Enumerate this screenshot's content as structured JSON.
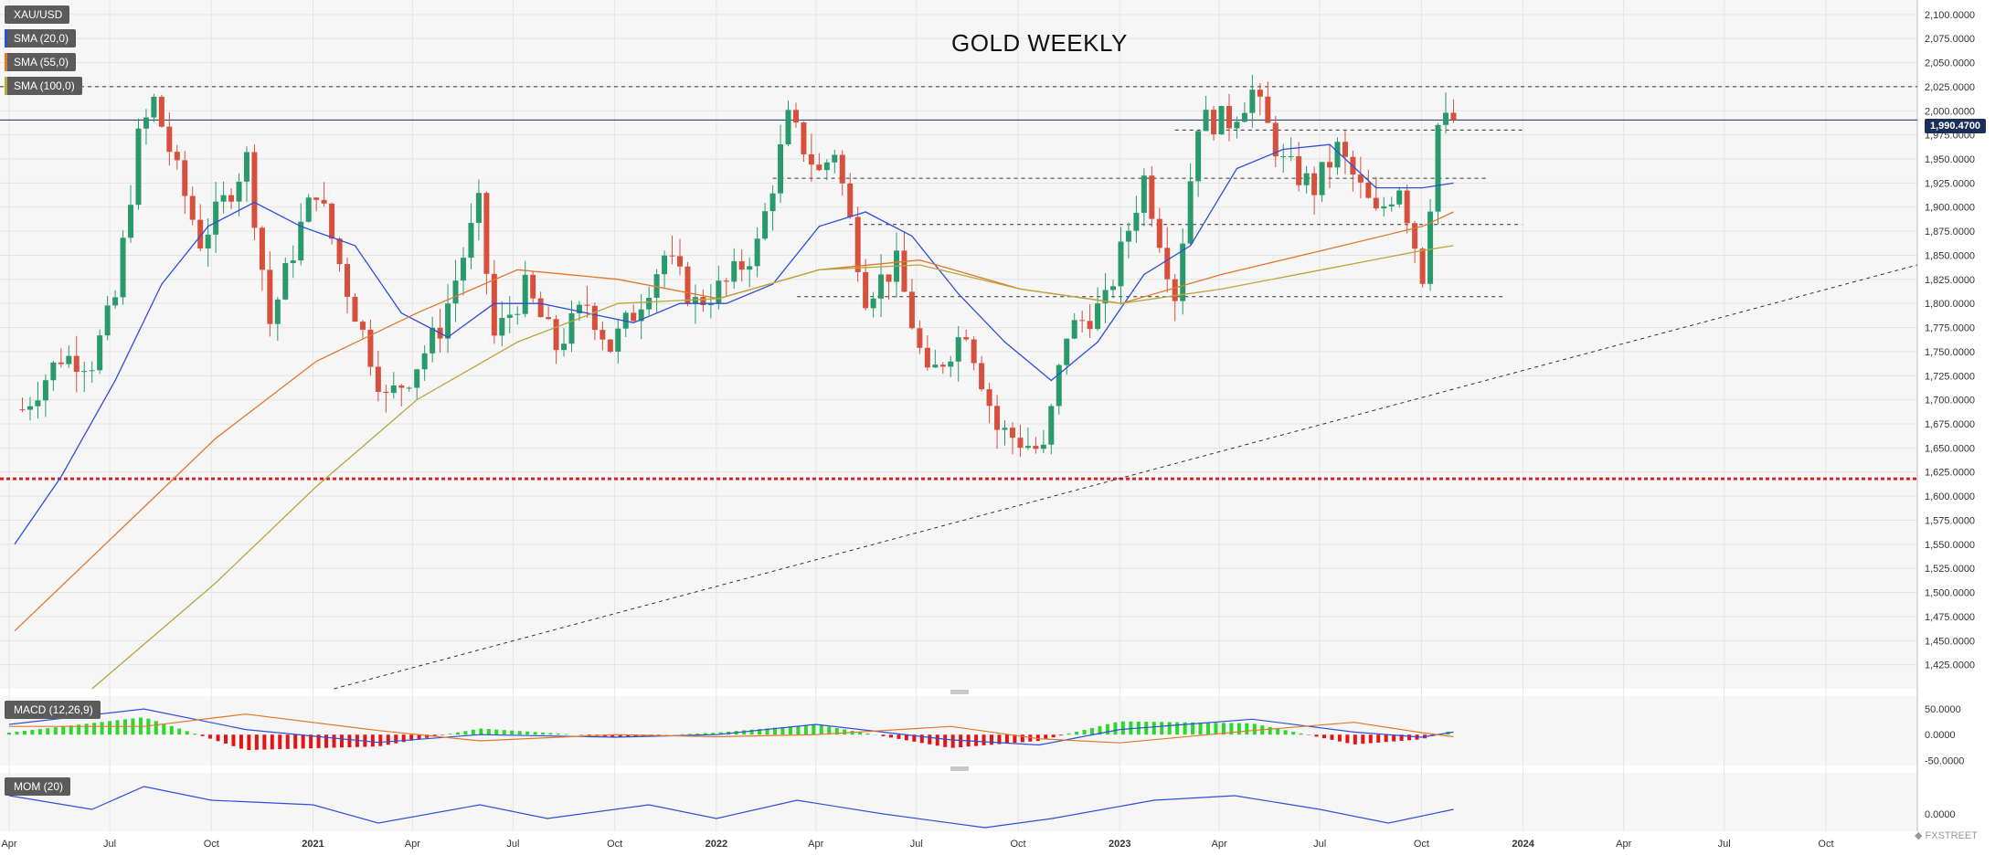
{
  "chart_data": [
    {
      "type": "line",
      "title": "GOLD WEEKLY",
      "symbol": "XAU/USD",
      "last_price": "1,990.4700",
      "indicators": [
        {
          "label": "SMA (20,0)",
          "color": "#2f4ed8"
        },
        {
          "label": "SMA (55,0)",
          "color": "#e0782c"
        },
        {
          "label": "SMA (100,0)",
          "color": "#b9a73a"
        }
      ],
      "x_ticks": [
        "Apr",
        "Jul",
        "Oct",
        "2021",
        "Apr",
        "Jul",
        "Oct",
        "2022",
        "Apr",
        "Jul",
        "Oct",
        "2023",
        "Apr",
        "Jul",
        "Oct",
        "2024",
        "Apr",
        "Jul",
        "Oct"
      ],
      "x_range": [
        "2020-04-01",
        "2024-12-31"
      ],
      "y_ticks": [
        "2,100.0000",
        "2,075.0000",
        "2,050.0000",
        "2,025.0000",
        "2,000.0000",
        "1,975.0000",
        "1,950.0000",
        "1,925.0000",
        "1,900.0000",
        "1,875.0000",
        "1,850.0000",
        "1,825.0000",
        "1,800.0000",
        "1,775.0000",
        "1,750.0000",
        "1,725.0000",
        "1,700.0000",
        "1,675.0000",
        "1,650.0000",
        "1,625.0000",
        "1,600.0000",
        "1,575.0000",
        "1,550.0000",
        "1,525.0000",
        "1,500.0000",
        "1,475.0000",
        "1,450.0000",
        "1,425.0000"
      ],
      "ylim": [
        1400,
        2115
      ],
      "price_path": [
        [
          "2020-04-13",
          1690
        ],
        [
          "2020-05-18",
          1745
        ],
        [
          "2020-06-15",
          1740
        ],
        [
          "2020-07-06",
          1805
        ],
        [
          "2020-07-27",
          1970
        ],
        [
          "2020-08-10",
          2010
        ],
        [
          "2020-08-31",
          1935
        ],
        [
          "2020-09-21",
          1865
        ],
        [
          "2020-10-12",
          1905
        ],
        [
          "2020-11-02",
          1950
        ],
        [
          "2020-11-23",
          1780
        ],
        [
          "2020-12-21",
          1880
        ],
        [
          "2021-01-04",
          1920
        ],
        [
          "2021-02-01",
          1815
        ],
        [
          "2021-03-08",
          1700
        ],
        [
          "2021-03-29",
          1725
        ],
        [
          "2021-04-26",
          1775
        ],
        [
          "2021-05-31",
          1900
        ],
        [
          "2021-06-14",
          1765
        ],
        [
          "2021-07-12",
          1815
        ],
        [
          "2021-08-09",
          1755
        ],
        [
          "2021-09-06",
          1800
        ],
        [
          "2021-09-27",
          1755
        ],
        [
          "2021-10-18",
          1790
        ],
        [
          "2021-11-15",
          1850
        ],
        [
          "2021-12-13",
          1800
        ],
        [
          "2022-01-10",
          1820
        ],
        [
          "2022-02-07",
          1860
        ],
        [
          "2022-03-07",
          1990
        ],
        [
          "2022-04-04",
          1935
        ],
        [
          "2022-04-18",
          1960
        ],
        [
          "2022-05-16",
          1810
        ],
        [
          "2022-06-13",
          1840
        ],
        [
          "2022-07-11",
          1720
        ],
        [
          "2022-08-15",
          1775
        ],
        [
          "2022-09-12",
          1670
        ],
        [
          "2022-10-24",
          1645
        ],
        [
          "2022-11-14",
          1770
        ],
        [
          "2022-12-19",
          1800
        ],
        [
          "2023-01-23",
          1930
        ],
        [
          "2023-02-20",
          1810
        ],
        [
          "2023-03-13",
          1990
        ],
        [
          "2023-04-10",
          1990
        ],
        [
          "2023-05-01",
          2020
        ],
        [
          "2023-05-29",
          1945
        ],
        [
          "2023-06-26",
          1920
        ],
        [
          "2023-07-17",
          1960
        ],
        [
          "2023-08-21",
          1890
        ],
        [
          "2023-09-11",
          1925
        ],
        [
          "2023-10-02",
          1830
        ],
        [
          "2023-10-16",
          1985
        ],
        [
          "2023-10-30",
          1990.47
        ]
      ],
      "series": [
        {
          "name": "SMA (20,0)",
          "color": "#2f4ed8",
          "points": [
            [
              "2020-04-06",
              1550
            ],
            [
              "2020-05-18",
              1620
            ],
            [
              "2020-07-06",
              1720
            ],
            [
              "2020-08-17",
              1820
            ],
            [
              "2020-09-28",
              1880
            ],
            [
              "2020-11-09",
              1905
            ],
            [
              "2020-12-21",
              1880
            ],
            [
              "2021-02-08",
              1860
            ],
            [
              "2021-03-22",
              1790
            ],
            [
              "2021-05-03",
              1765
            ],
            [
              "2021-06-14",
              1800
            ],
            [
              "2021-07-26",
              1800
            ],
            [
              "2021-09-06",
              1790
            ],
            [
              "2021-10-18",
              1780
            ],
            [
              "2021-11-29",
              1800
            ],
            [
              "2022-01-10",
              1800
            ],
            [
              "2022-02-21",
              1820
            ],
            [
              "2022-04-04",
              1880
            ],
            [
              "2022-05-16",
              1895
            ],
            [
              "2022-06-27",
              1870
            ],
            [
              "2022-08-08",
              1810
            ],
            [
              "2022-09-19",
              1760
            ],
            [
              "2022-10-31",
              1720
            ],
            [
              "2022-12-12",
              1760
            ],
            [
              "2023-01-23",
              1830
            ],
            [
              "2023-03-06",
              1860
            ],
            [
              "2023-04-17",
              1940
            ],
            [
              "2023-05-29",
              1960
            ],
            [
              "2023-07-10",
              1965
            ],
            [
              "2023-08-21",
              1920
            ],
            [
              "2023-10-02",
              1920
            ],
            [
              "2023-10-30",
              1925
            ]
          ]
        },
        {
          "name": "SMA (55,0)",
          "color": "#e0782c",
          "points": [
            [
              "2020-04-06",
              1460
            ],
            [
              "2020-07-06",
              1560
            ],
            [
              "2020-10-05",
              1660
            ],
            [
              "2021-01-04",
              1740
            ],
            [
              "2021-04-05",
              1790
            ],
            [
              "2021-07-05",
              1835
            ],
            [
              "2021-10-04",
              1825
            ],
            [
              "2022-01-03",
              1805
            ],
            [
              "2022-04-04",
              1835
            ],
            [
              "2022-07-04",
              1845
            ],
            [
              "2022-10-03",
              1815
            ],
            [
              "2023-01-02",
              1800
            ],
            [
              "2023-04-03",
              1830
            ],
            [
              "2023-07-03",
              1855
            ],
            [
              "2023-10-02",
              1880
            ],
            [
              "2023-10-30",
              1895
            ]
          ]
        },
        {
          "name": "SMA (100,0)",
          "color": "#b9a73a",
          "points": [
            [
              "2020-06-15",
              1400
            ],
            [
              "2020-10-05",
              1510
            ],
            [
              "2021-01-04",
              1610
            ],
            [
              "2021-04-05",
              1700
            ],
            [
              "2021-07-05",
              1760
            ],
            [
              "2021-10-04",
              1800
            ],
            [
              "2022-01-03",
              1805
            ],
            [
              "2022-04-04",
              1835
            ],
            [
              "2022-07-04",
              1840
            ],
            [
              "2022-10-03",
              1815
            ],
            [
              "2023-01-02",
              1800
            ],
            [
              "2023-04-03",
              1815
            ],
            [
              "2023-07-03",
              1835
            ],
            [
              "2023-10-02",
              1855
            ],
            [
              "2023-10-30",
              1860
            ]
          ]
        }
      ],
      "reference_lines": [
        {
          "price": 2025,
          "style": "dashed",
          "color": "#333333"
        },
        {
          "price": 1990.47,
          "style": "solid",
          "color": "#1c2f5a"
        },
        {
          "price": 1618,
          "style": "dotted",
          "color": "#e02020"
        }
      ]
    },
    {
      "type": "line",
      "title": "MACD (12,26,9)",
      "y_ticks": [
        "50.0000",
        "0.0000",
        "-50.0000"
      ],
      "ylim": [
        -60,
        75
      ]
    },
    {
      "type": "line",
      "title": "MOM (20)",
      "y_ticks": [
        "0.0000"
      ]
    }
  ]
}
